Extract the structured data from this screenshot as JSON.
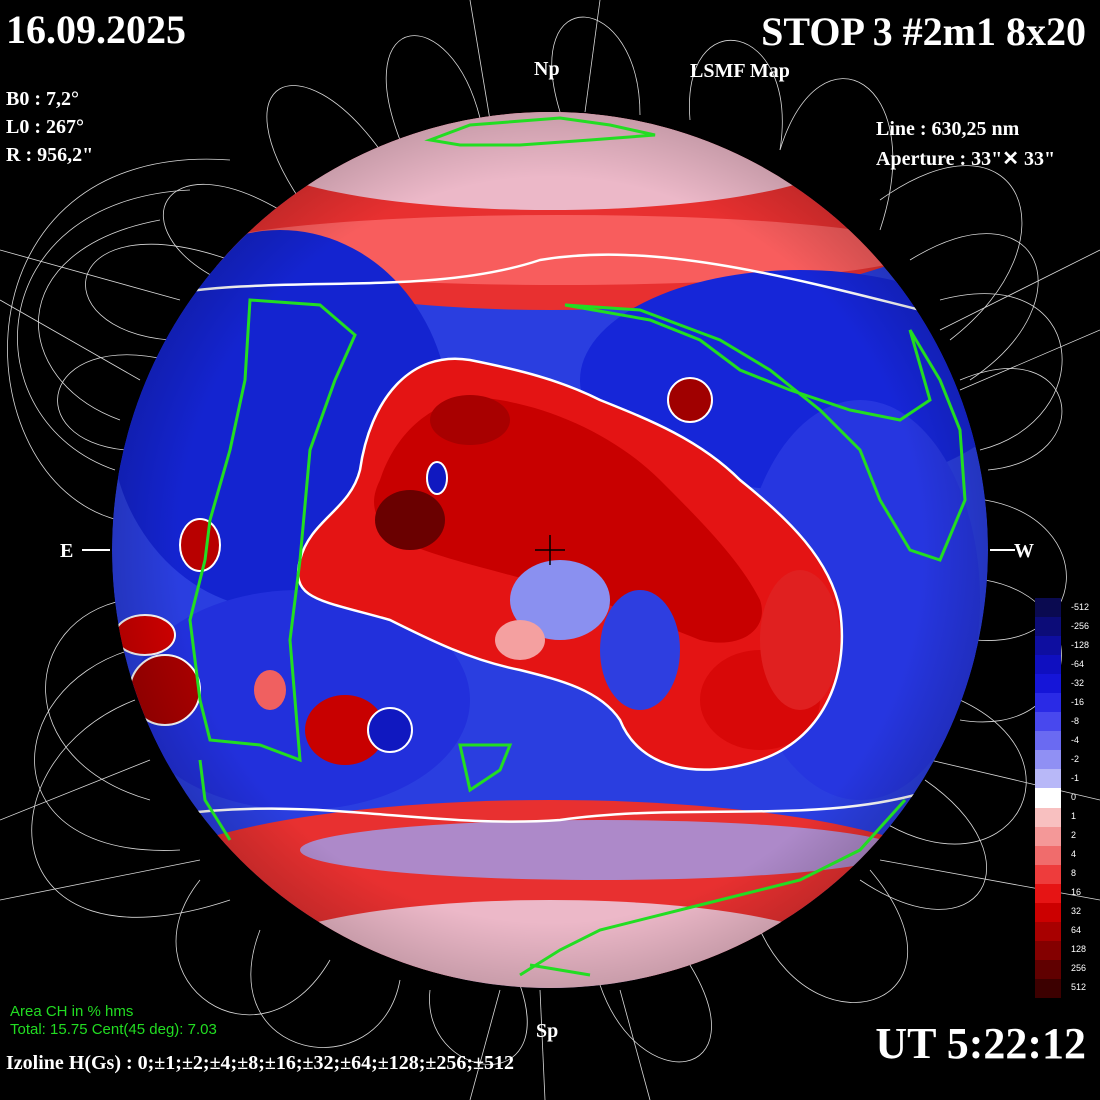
{
  "header": {
    "date": "16.09.2025",
    "title": "STOP 3 #2m1 8x20",
    "subtitle": "LSMF  Map"
  },
  "params": {
    "b0": "B0 : 7,2°",
    "l0": "L0 : 267°",
    "r": "R  : 956,2\"",
    "line": "Line :  630,25 nm",
    "aperture": "Aperture : 33\"✕ 33\""
  },
  "orientation": {
    "north": "Np",
    "south": "Sp",
    "east": "E",
    "west": "W"
  },
  "footer": {
    "ut": "UT 5:22:12",
    "izoline": "Izoline H(Gs) : 0;±1;±2;±4;±8;±16;±32;±64;±128;±256;±512",
    "ch_title": "Area CH in % hms",
    "ch_values": "Total: 15.75    Cent(45 deg): 7.03"
  },
  "colorbar": {
    "labels": [
      "-512",
      "-256",
      "-128",
      "-64",
      "-32",
      "-16",
      "-8",
      "-4",
      "-2",
      "-1",
      "0",
      "1",
      "2",
      "4",
      "8",
      "16",
      "32",
      "64",
      "128",
      "256",
      "512"
    ],
    "colors": [
      "#0a0a50",
      "#0c0c78",
      "#0e0ea0",
      "#0f0fc0",
      "#1515d8",
      "#2a2ae6",
      "#4848ee",
      "#6a6af2",
      "#9090f4",
      "#b8b8f8",
      "#ffffff",
      "#f8c0c0",
      "#f49898",
      "#f06c6c",
      "#ee3c3c",
      "#e61414",
      "#cc0000",
      "#a80000",
      "#840000",
      "#600000",
      "#3c0000"
    ],
    "positive_color": "#e01010",
    "negative_color": "#1818d0",
    "coronal_hole_contour_color": "#22dd22"
  }
}
